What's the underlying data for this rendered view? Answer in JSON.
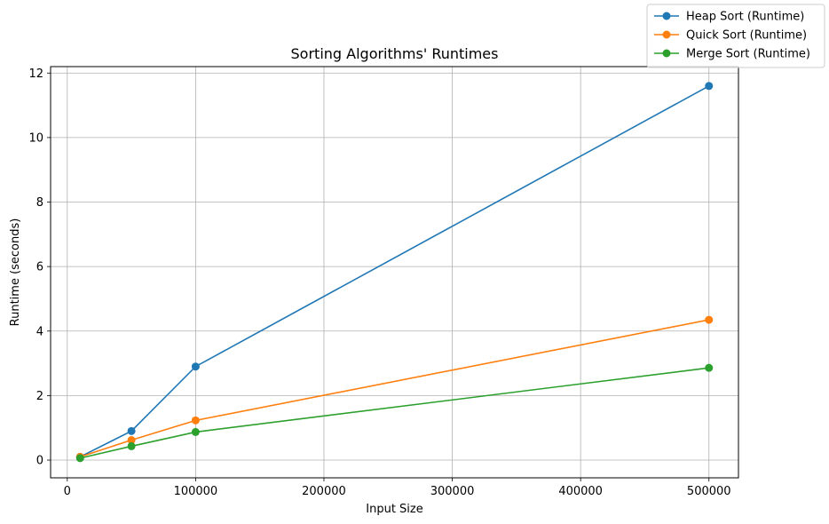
{
  "chart_data": {
    "type": "line",
    "title": "Sorting Algorithms' Runtimes",
    "xlabel": "Input Size",
    "ylabel": "Runtime (seconds)",
    "x": [
      10000,
      50000,
      100000,
      500000
    ],
    "xlim": [
      -13000,
      523000
    ],
    "ylim": [
      -0.55,
      12.2
    ],
    "xticks": [
      0,
      100000,
      200000,
      300000,
      400000,
      500000
    ],
    "yticks": [
      0,
      2,
      4,
      6,
      8,
      10,
      12
    ],
    "grid": true,
    "legend_position": "top-right",
    "series": [
      {
        "name": "Heap Sort (Runtime)",
        "color": "#1f77b4",
        "values": [
          0.1,
          0.9,
          2.9,
          11.6
        ]
      },
      {
        "name": "Quick Sort (Runtime)",
        "color": "#ff7f0e",
        "values": [
          0.1,
          0.62,
          1.23,
          4.35
        ]
      },
      {
        "name": "Merge Sort (Runtime)",
        "color": "#2ca02c",
        "values": [
          0.06,
          0.43,
          0.87,
          2.86
        ]
      }
    ]
  }
}
